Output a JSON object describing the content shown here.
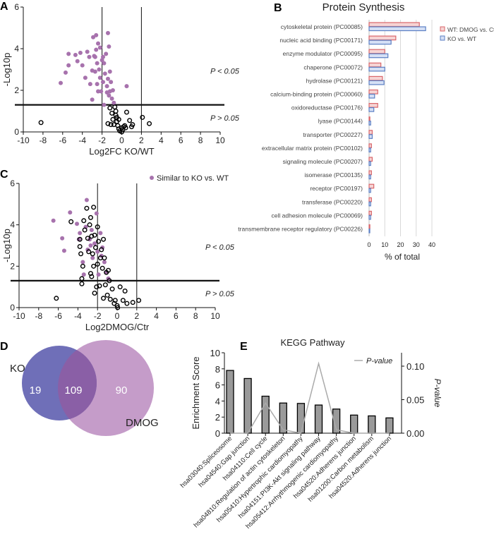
{
  "panels": {
    "a": "A",
    "b": "B",
    "c": "C",
    "d": "D",
    "e": "E"
  },
  "colors": {
    "purple": "#a772ad",
    "red": "#d9666a",
    "blue": "#5b7fc4",
    "venn_ko": "#6f6fb8",
    "venn_dmog": "#c59cc9",
    "overlap": "#8a5fa6",
    "bar": "#9a9a9a",
    "pline": "#aaaaaa"
  },
  "chart_data": [
    {
      "id": "A",
      "type": "scatter",
      "xlabel": "Log2FC KO/WT",
      "ylabel": "-Log10p",
      "xlim": [
        -10,
        10
      ],
      "ylim": [
        0,
        6
      ],
      "xticks": [
        "-10",
        "-8",
        "-6",
        "-4",
        "-2",
        "0",
        "2",
        "4",
        "6",
        "8",
        "10"
      ],
      "yticks": [
        "0",
        "2",
        "4",
        "6"
      ],
      "vlines": [
        -2,
        2
      ],
      "hline": 1.3,
      "annotations": [
        "P < 0.05",
        "P > 0.05"
      ],
      "filled": [
        [
          -1.4,
          4.75
        ],
        [
          -2.6,
          4.65
        ],
        [
          -2.9,
          4.55
        ],
        [
          -2.4,
          4.25
        ],
        [
          -1.3,
          4.1
        ],
        [
          -2.2,
          4.05
        ],
        [
          -2.6,
          3.95
        ],
        [
          -6.2,
          2.35
        ],
        [
          -5.7,
          2.85
        ],
        [
          -5.4,
          3.2
        ],
        [
          -5.4,
          3.75
        ],
        [
          -4.7,
          3.7
        ],
        [
          -4.5,
          3.4
        ],
        [
          -4.2,
          3.8
        ],
        [
          -4.0,
          3.2
        ],
        [
          -3.7,
          2.6
        ],
        [
          -3.5,
          3.85
        ],
        [
          -3.3,
          3.6
        ],
        [
          -3.2,
          2.3
        ],
        [
          -3.0,
          2.95
        ],
        [
          -3.0,
          1.55
        ],
        [
          -2.8,
          3.65
        ],
        [
          -2.7,
          2.9
        ],
        [
          -2.5,
          3.3
        ],
        [
          -2.5,
          2.3
        ],
        [
          -2.3,
          3.0
        ],
        [
          -2.2,
          2.6
        ],
        [
          -2.1,
          1.95
        ],
        [
          -2.0,
          3.45
        ],
        [
          -1.9,
          2.4
        ],
        [
          -1.8,
          3.3
        ],
        [
          -1.8,
          1.3
        ],
        [
          -1.7,
          2.8
        ],
        [
          -1.6,
          3.75
        ],
        [
          -1.5,
          2.2
        ],
        [
          -1.5,
          1.9
        ],
        [
          -1.4,
          2.55
        ],
        [
          -1.3,
          1.75
        ],
        [
          -1.2,
          2.9
        ],
        [
          -1.1,
          2.4
        ],
        [
          -1.0,
          1.6
        ],
        [
          -0.9,
          2.0
        ],
        [
          -0.8,
          1.4
        ],
        [
          0.5,
          2.2
        ],
        [
          -2.4,
          1.95
        ],
        [
          -1.9,
          3.6
        ],
        [
          -1.2,
          1.95
        ],
        [
          -2.7,
          3.6
        ]
      ],
      "open": [
        [
          -8.2,
          0.45
        ],
        [
          2.1,
          0.7
        ],
        [
          2.8,
          0.4
        ],
        [
          0.5,
          0.95
        ],
        [
          0.8,
          0.55
        ],
        [
          1.1,
          0.35
        ],
        [
          -1.2,
          1.15
        ],
        [
          -1.0,
          0.9
        ],
        [
          -0.9,
          0.6
        ],
        [
          -0.7,
          1.2
        ],
        [
          -0.6,
          0.8
        ],
        [
          -0.5,
          0.5
        ],
        [
          -0.4,
          0.3
        ],
        [
          -0.3,
          0.15
        ],
        [
          -0.2,
          0.05
        ],
        [
          0,
          0
        ],
        [
          0.1,
          0.1
        ],
        [
          0.2,
          0.25
        ],
        [
          0.4,
          0.2
        ],
        [
          -1.4,
          0.4
        ],
        [
          -1.1,
          0.35
        ],
        [
          -0.8,
          0.35
        ],
        [
          -0.6,
          1.0
        ],
        [
          -0.3,
          0.6
        ],
        [
          0.0,
          0.2
        ],
        [
          0.3,
          0.3
        ],
        [
          1.0,
          0.25
        ],
        [
          -0.5,
          0.7
        ]
      ]
    },
    {
      "id": "B",
      "type": "bar",
      "title": "Protein Synthesis",
      "xlabel": "% of total",
      "xlim": [
        0,
        40
      ],
      "xticks": [
        "0",
        "10",
        "20",
        "30",
        "40"
      ],
      "categories": [
        "cytoskeletal protein (PC00085)",
        "nucleic acid binding (PC00171)",
        "enzyme modulator (PC00095)",
        "chaperone (PC00072)",
        "hydrolase (PC00121)",
        "calcium-binding protein (PC00060)",
        "oxidoreductase (PC00176)",
        "lyase (PC00144)",
        "transporter (PC00227)",
        "extracellular matrix protein (PC00102)",
        "signaling molecule (PC00207)",
        "isomerase (PC00135)",
        "receptor (PC00197)",
        "transferase (PC00220)",
        "cell adhesion molecule (PC00069)",
        "transmembrane receptor regulatory (PC00226)"
      ],
      "series": [
        {
          "name": "WT: DMOG vs. Ctr",
          "values": [
            32,
            17,
            10,
            7.5,
            8.5,
            5.5,
            5.5,
            0.5,
            2,
            1.5,
            2,
            1.5,
            3,
            1.5,
            1.5,
            0.5
          ]
        },
        {
          "name": "KO vs. WT",
          "values": [
            36,
            14,
            12,
            10,
            9.5,
            3.5,
            3,
            1,
            2,
            1,
            1,
            1,
            1,
            1,
            1,
            0
          ]
        }
      ],
      "legend": "top-right"
    },
    {
      "id": "C",
      "type": "scatter",
      "xlabel": "Log2DMOG/Ctr",
      "ylabel": "-Log10p",
      "xlim": [
        -10,
        10
      ],
      "ylim": [
        0,
        6
      ],
      "xticks": [
        "-10",
        "-8",
        "-6",
        "-4",
        "-2",
        "0",
        "2",
        "4",
        "6",
        "8",
        "10"
      ],
      "yticks": [
        "0",
        "2",
        "4",
        "6"
      ],
      "vlines": [
        -2,
        2
      ],
      "hline": 1.3,
      "annotations": [
        "P < 0.05",
        "P > 0.05"
      ],
      "legend_label": "Similar to KO vs. WT",
      "filled": [
        [
          -6.5,
          4.2
        ],
        [
          -5.6,
          3.35
        ],
        [
          -5.4,
          2.75
        ],
        [
          -4.8,
          4.6
        ],
        [
          -4.1,
          4.05
        ],
        [
          -3.9,
          3.3
        ],
        [
          -3.8,
          3.6
        ],
        [
          -3.1,
          5.2
        ],
        [
          -3.2,
          3.9
        ],
        [
          -3.0,
          2.8
        ],
        [
          -2.8,
          3.3
        ],
        [
          -2.6,
          3.75
        ],
        [
          -2.5,
          2.4
        ],
        [
          -2.3,
          3.1
        ],
        [
          -2.1,
          4.55
        ],
        [
          -2.0,
          2.7
        ],
        [
          -1.9,
          1.6
        ],
        [
          -1.7,
          3.6
        ],
        [
          -1.5,
          2.9
        ],
        [
          -1.3,
          2.2
        ],
        [
          -1.1,
          1.7
        ],
        [
          -0.9,
          1.4
        ],
        [
          -3.5,
          2.2
        ],
        [
          -3.4,
          1.6
        ],
        [
          -2.7,
          3.0
        ],
        [
          -1.6,
          2.5
        ]
      ],
      "open": [
        [
          -6.2,
          0.45
        ],
        [
          -4.7,
          4.15
        ],
        [
          -3.8,
          3.3
        ],
        [
          -3.7,
          2.6
        ],
        [
          -3.6,
          1.4
        ],
        [
          -3.6,
          1.15
        ],
        [
          -3.5,
          2.0
        ],
        [
          -3.4,
          4.2
        ],
        [
          -3.3,
          3.75
        ],
        [
          -3.1,
          4.8
        ],
        [
          -3.0,
          3.35
        ],
        [
          -2.9,
          2.7
        ],
        [
          -2.8,
          4.0
        ],
        [
          -2.7,
          4.35
        ],
        [
          -2.7,
          1.65
        ],
        [
          -2.6,
          3.45
        ],
        [
          -2.5,
          2.6
        ],
        [
          -2.4,
          4.85
        ],
        [
          -2.4,
          2.0
        ],
        [
          -2.3,
          0.7
        ],
        [
          -2.3,
          3.5
        ],
        [
          -2.2,
          2.9
        ],
        [
          -2.1,
          1.0
        ],
        [
          -2.0,
          3.9
        ],
        [
          -2.0,
          2.1
        ],
        [
          -1.9,
          3.2
        ],
        [
          -1.8,
          1.05
        ],
        [
          -1.7,
          2.4
        ],
        [
          -1.6,
          2.8
        ],
        [
          -1.5,
          1.9
        ],
        [
          -1.4,
          3.3
        ],
        [
          -1.3,
          2.4
        ],
        [
          -1.2,
          1.1
        ],
        [
          -1.1,
          1.7
        ],
        [
          -1.0,
          0.6
        ],
        [
          -0.9,
          1.8
        ],
        [
          -0.8,
          1.3
        ],
        [
          -0.7,
          0.4
        ],
        [
          -0.5,
          0.9
        ],
        [
          -0.3,
          0.2
        ],
        [
          -0.2,
          0.35
        ],
        [
          0,
          0.1
        ],
        [
          0.05,
          0
        ],
        [
          0.3,
          1.0
        ],
        [
          0.6,
          0.35
        ],
        [
          0.8,
          0.8
        ],
        [
          1.0,
          0.2
        ],
        [
          1.6,
          0.25
        ],
        [
          2.2,
          0.35
        ],
        [
          -1.4,
          0.45
        ],
        [
          -2.6,
          1.5
        ],
        [
          -3.8,
          2.95
        ]
      ]
    },
    {
      "id": "D",
      "type": "venn",
      "sets": [
        "KO",
        "DMOG"
      ],
      "values": {
        "only_ko": "19",
        "both": "109",
        "only_dmog": "90"
      }
    },
    {
      "id": "E",
      "type": "bar",
      "title": "KEGG Pathway",
      "ylabel": "Enrichment Score",
      "y2label": "P-value",
      "ylim": [
        0,
        10
      ],
      "y2lim": [
        0,
        0.12
      ],
      "yticks": [
        "0",
        "2",
        "4",
        "6",
        "8",
        "10"
      ],
      "y2ticks": [
        "0.00",
        "0.05",
        "0.10"
      ],
      "legend": "P-value",
      "categories": [
        "hsa03040:Spliceosome",
        "hsa04540:Gap junction",
        "hsa04110:Cell cycle",
        "hsa04810:Regulation of actin cytoskeleton",
        "hsa05410:Hypertrophic cardiomyopathy",
        "hsa04151:PI3K-Akt signaling pathway",
        "hsa05412:Arrhythmogenic cardiomyopathy",
        "hsa04520:Adherens junction",
        "hsa01200:Carbon metabolism",
        "hsa04520:Adherens junction"
      ],
      "values": [
        7.8,
        6.8,
        4.6,
        3.75,
        3.7,
        3.5,
        3.0,
        2.25,
        2.15,
        1.9
      ],
      "pvalues": [
        0.0,
        0.0,
        0.045,
        0.005,
        0.0,
        0.104,
        0.005,
        0.0,
        0.0,
        0.0
      ]
    }
  ]
}
